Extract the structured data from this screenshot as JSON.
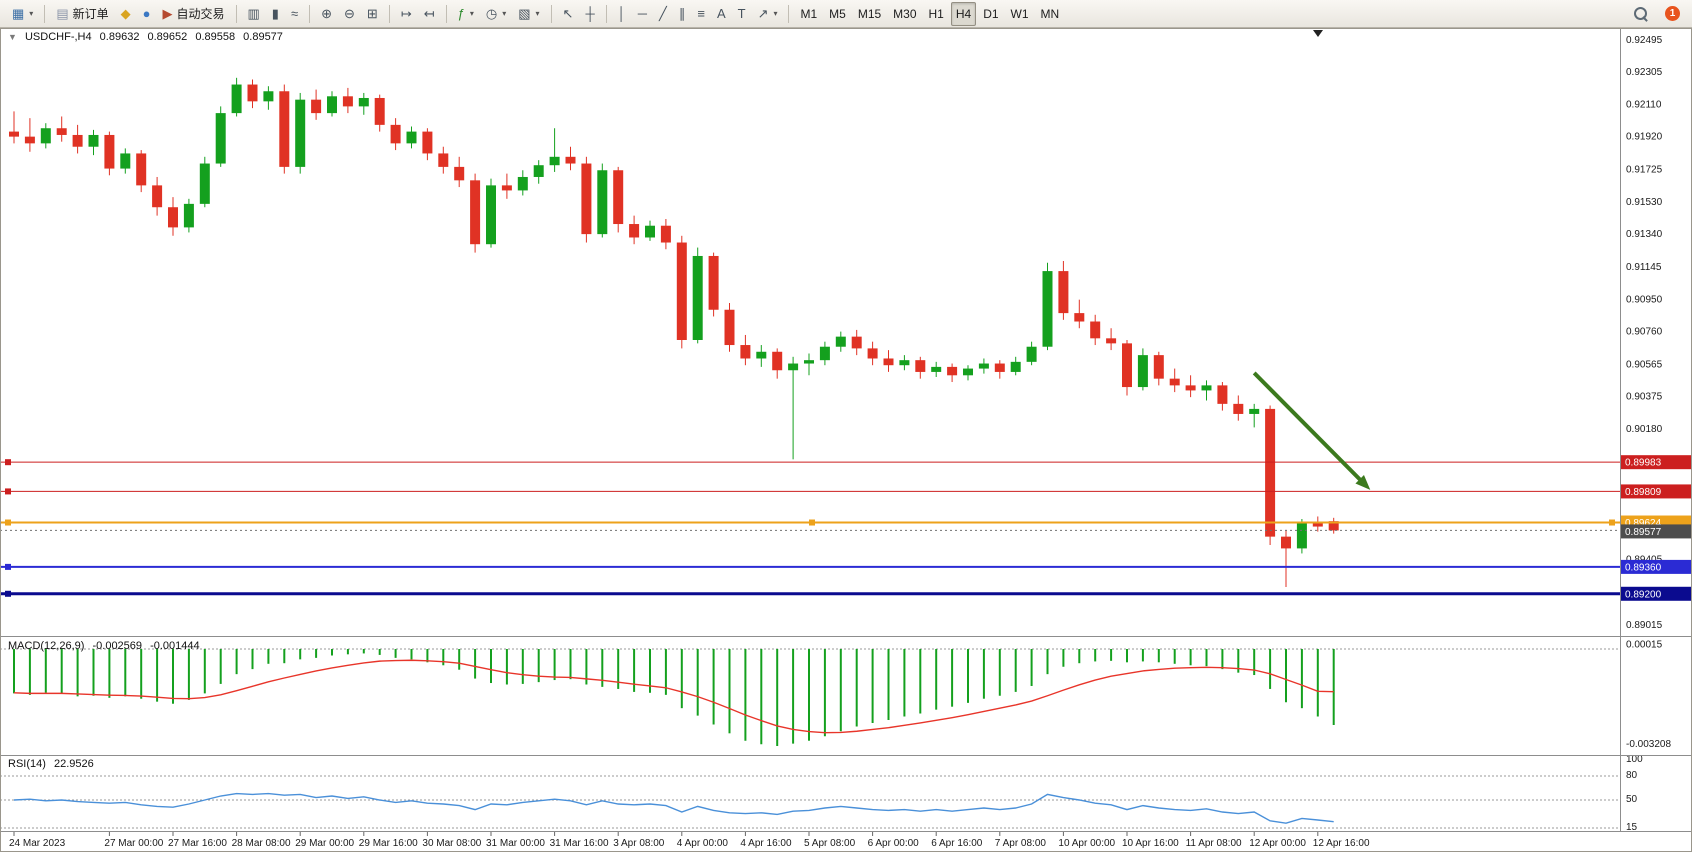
{
  "toolbar": {
    "dropdown_glyph": "▾",
    "groups": [
      {
        "items": [
          {
            "name": "new-chart",
            "icon": "▦",
            "icon_color": "#3a6ea5",
            "dropdown": true
          }
        ]
      },
      {
        "items": [
          {
            "name": "new-order",
            "icon": "▤",
            "icon_color": "#8a94a8",
            "label": "新订单"
          },
          {
            "name": "metaeditor",
            "icon": "◆",
            "icon_color": "#d9a420"
          },
          {
            "name": "community",
            "icon": "●",
            "icon_color": "#3b78c3"
          },
          {
            "name": "autotrading",
            "icon": "▶",
            "icon_color": "#b5492f",
            "label": "自动交易"
          }
        ]
      },
      {
        "items": [
          {
            "name": "chart-bars-mode",
            "icon": "▥"
          },
          {
            "name": "chart-candles-mode",
            "icon": "▮"
          },
          {
            "name": "chart-line-mode",
            "icon": "≈"
          }
        ]
      },
      {
        "items": [
          {
            "name": "zoom-in",
            "icon": "⊕"
          },
          {
            "name": "zoom-out",
            "icon": "⊖"
          },
          {
            "name": "tile-windows",
            "icon": "⊞"
          }
        ]
      },
      {
        "items": [
          {
            "name": "auto-scroll",
            "icon": "↦"
          },
          {
            "name": "chart-shift",
            "icon": "↤"
          }
        ]
      },
      {
        "items": [
          {
            "name": "indicators",
            "icon": "ƒ",
            "icon_color": "#2e8b2e",
            "dropdown": true
          },
          {
            "name": "periods",
            "icon": "◷",
            "dropdown": true
          },
          {
            "name": "templates",
            "icon": "▧",
            "dropdown": true
          }
        ]
      },
      {
        "items": [
          {
            "name": "cursor",
            "icon": "↖"
          },
          {
            "name": "crosshair",
            "icon": "┼"
          }
        ]
      },
      {
        "items": [
          {
            "name": "vertical-line-tool",
            "icon": "│"
          },
          {
            "name": "horizontal-line-tool",
            "icon": "─"
          },
          {
            "name": "trendline-tool",
            "icon": "╱"
          },
          {
            "name": "channel-tool",
            "icon": "∥"
          },
          {
            "name": "fibonacci-tool",
            "icon": "≡"
          },
          {
            "name": "text-tool",
            "icon": "A"
          },
          {
            "name": "label-tool",
            "icon": "T"
          },
          {
            "name": "arrows-tool",
            "icon": "↗",
            "dropdown": true
          }
        ]
      },
      {
        "items": [
          {
            "name": "tf-m1",
            "label": "M1"
          },
          {
            "name": "tf-m5",
            "label": "M5"
          },
          {
            "name": "tf-m15",
            "label": "M15"
          },
          {
            "name": "tf-m30",
            "label": "M30"
          },
          {
            "name": "tf-h1",
            "label": "H1"
          },
          {
            "name": "tf-h4",
            "label": "H4",
            "active": true
          },
          {
            "name": "tf-d1",
            "label": "D1"
          },
          {
            "name": "tf-w1",
            "label": "W1"
          },
          {
            "name": "tf-mn",
            "label": "MN"
          }
        ]
      }
    ],
    "right_items": [
      {
        "name": "search",
        "icon": "search"
      },
      {
        "name": "notifications",
        "badge": "1"
      }
    ]
  },
  "chart": {
    "header": {
      "one_click_icon": "▼",
      "symbol": "USDCHF-,H4",
      "open": "0.89632",
      "high": "0.89652",
      "low": "0.89558",
      "close": "0.89577"
    },
    "macd_label": {
      "title": "MACD(12,26,9)",
      "main": "-0.002569",
      "signal": "-0.001444"
    },
    "rsi_label": {
      "title": "RSI(14)",
      "value": "22.9526"
    }
  },
  "colors": {
    "bull": "#14a01e",
    "bear": "#e03224",
    "macd_histogram": "#14a01e",
    "macd_signal": "#e8352a",
    "rsi_line": "#4a90d9",
    "bid_line": "#707070",
    "bid_tag": "#4d4d4d",
    "arrow": "#3c7a1e",
    "axis_text": "#1a1a1a"
  },
  "chart_data": {
    "type": "candlestick",
    "symbol": "USDCHF",
    "timeframe": "H4",
    "candles": [
      [
        0.9195,
        0.9207,
        0.9188,
        0.9192
      ],
      [
        0.9192,
        0.9203,
        0.9183,
        0.9188
      ],
      [
        0.9188,
        0.92,
        0.9185,
        0.9197
      ],
      [
        0.9197,
        0.9204,
        0.9189,
        0.9193
      ],
      [
        0.9193,
        0.9199,
        0.9182,
        0.9186
      ],
      [
        0.9186,
        0.9196,
        0.9181,
        0.9193
      ],
      [
        0.9193,
        0.9195,
        0.9169,
        0.9173
      ],
      [
        0.9173,
        0.9185,
        0.917,
        0.9182
      ],
      [
        0.9182,
        0.9184,
        0.9159,
        0.9163
      ],
      [
        0.9163,
        0.9168,
        0.9145,
        0.915
      ],
      [
        0.915,
        0.9156,
        0.9133,
        0.9138
      ],
      [
        0.9138,
        0.9155,
        0.9135,
        0.9152
      ],
      [
        0.9152,
        0.918,
        0.915,
        0.9176
      ],
      [
        0.9176,
        0.921,
        0.9174,
        0.9206
      ],
      [
        0.9206,
        0.9227,
        0.9204,
        0.9223
      ],
      [
        0.9223,
        0.9226,
        0.9209,
        0.9213
      ],
      [
        0.9213,
        0.9222,
        0.9208,
        0.9219
      ],
      [
        0.9219,
        0.9223,
        0.917,
        0.9174
      ],
      [
        0.9174,
        0.9218,
        0.917,
        0.9214
      ],
      [
        0.9214,
        0.922,
        0.9202,
        0.9206
      ],
      [
        0.9206,
        0.9219,
        0.9204,
        0.9216
      ],
      [
        0.9216,
        0.9221,
        0.9206,
        0.921
      ],
      [
        0.921,
        0.9218,
        0.9205,
        0.9215
      ],
      [
        0.9215,
        0.9217,
        0.9195,
        0.9199
      ],
      [
        0.9199,
        0.9203,
        0.9184,
        0.9188
      ],
      [
        0.9188,
        0.9198,
        0.9185,
        0.9195
      ],
      [
        0.9195,
        0.9197,
        0.9178,
        0.9182
      ],
      [
        0.9182,
        0.9186,
        0.917,
        0.9174
      ],
      [
        0.9174,
        0.918,
        0.9162,
        0.9166
      ],
      [
        0.9166,
        0.917,
        0.9123,
        0.9128
      ],
      [
        0.9128,
        0.9167,
        0.9126,
        0.9163
      ],
      [
        0.9163,
        0.917,
        0.9155,
        0.916
      ],
      [
        0.916,
        0.9172,
        0.9157,
        0.9168
      ],
      [
        0.9168,
        0.9178,
        0.9164,
        0.9175
      ],
      [
        0.9175,
        0.9197,
        0.9171,
        0.918
      ],
      [
        0.918,
        0.9186,
        0.9172,
        0.9176
      ],
      [
        0.9176,
        0.918,
        0.9129,
        0.9134
      ],
      [
        0.9134,
        0.9176,
        0.9132,
        0.9172
      ],
      [
        0.9172,
        0.9174,
        0.9135,
        0.914
      ],
      [
        0.914,
        0.9145,
        0.9128,
        0.9132
      ],
      [
        0.9132,
        0.9142,
        0.913,
        0.9139
      ],
      [
        0.9139,
        0.9143,
        0.9125,
        0.9129
      ],
      [
        0.9129,
        0.9133,
        0.9066,
        0.9071
      ],
      [
        0.9071,
        0.9126,
        0.9069,
        0.9121
      ],
      [
        0.9121,
        0.9123,
        0.9085,
        0.9089
      ],
      [
        0.9089,
        0.9093,
        0.9064,
        0.9068
      ],
      [
        0.9068,
        0.9074,
        0.9056,
        0.906
      ],
      [
        0.906,
        0.9068,
        0.9055,
        0.9064
      ],
      [
        0.9064,
        0.9066,
        0.9048,
        0.9053
      ],
      [
        0.9053,
        0.9061,
        0.9,
        0.9057
      ],
      [
        0.9057,
        0.9063,
        0.905,
        0.9059
      ],
      [
        0.9059,
        0.907,
        0.9056,
        0.9067
      ],
      [
        0.9067,
        0.9076,
        0.9064,
        0.9073
      ],
      [
        0.9073,
        0.9077,
        0.9062,
        0.9066
      ],
      [
        0.9066,
        0.907,
        0.9056,
        0.906
      ],
      [
        0.906,
        0.9065,
        0.9052,
        0.9056
      ],
      [
        0.9056,
        0.9062,
        0.9053,
        0.9059
      ],
      [
        0.9059,
        0.9061,
        0.9048,
        0.9052
      ],
      [
        0.9052,
        0.9058,
        0.9049,
        0.9055
      ],
      [
        0.9055,
        0.9057,
        0.9046,
        0.905
      ],
      [
        0.905,
        0.9056,
        0.9047,
        0.9054
      ],
      [
        0.9054,
        0.906,
        0.9051,
        0.9057
      ],
      [
        0.9057,
        0.9059,
        0.9048,
        0.9052
      ],
      [
        0.9052,
        0.9061,
        0.905,
        0.9058
      ],
      [
        0.9058,
        0.907,
        0.9056,
        0.9067
      ],
      [
        0.9067,
        0.9117,
        0.9065,
        0.9112
      ],
      [
        0.9112,
        0.9118,
        0.9083,
        0.9087
      ],
      [
        0.9087,
        0.9095,
        0.9078,
        0.9082
      ],
      [
        0.9082,
        0.9086,
        0.9068,
        0.9072
      ],
      [
        0.9072,
        0.9078,
        0.9065,
        0.9069
      ],
      [
        0.9069,
        0.9071,
        0.9038,
        0.9043
      ],
      [
        0.9043,
        0.9066,
        0.9041,
        0.9062
      ],
      [
        0.9062,
        0.9064,
        0.9044,
        0.9048
      ],
      [
        0.9048,
        0.9054,
        0.904,
        0.9044
      ],
      [
        0.9044,
        0.905,
        0.9037,
        0.9041
      ],
      [
        0.9041,
        0.9047,
        0.9035,
        0.9044
      ],
      [
        0.9044,
        0.9046,
        0.9029,
        0.9033
      ],
      [
        0.9033,
        0.9038,
        0.9023,
        0.9027
      ],
      [
        0.9027,
        0.9033,
        0.9019,
        0.903
      ],
      [
        0.903,
        0.9032,
        0.8949,
        0.8954
      ],
      [
        0.8954,
        0.8958,
        0.8924,
        0.8947
      ],
      [
        0.8947,
        0.89645,
        0.8944,
        0.8962
      ],
      [
        0.8962,
        0.8966,
        0.8957,
        0.896
      ],
      [
        0.89632,
        0.89652,
        0.89558,
        0.89577
      ]
    ],
    "macd": [
      -0.0015,
      -0.00155,
      -0.00148,
      -0.00152,
      -0.0016,
      -0.00158,
      -0.00165,
      -0.0016,
      -0.00168,
      -0.00178,
      -0.00185,
      -0.00172,
      -0.0015,
      -0.00118,
      -0.00085,
      -0.00068,
      -0.0005,
      -0.00048,
      -0.00035,
      -0.0003,
      -0.00022,
      -0.00018,
      -0.00015,
      -0.0002,
      -0.0003,
      -0.00035,
      -0.00045,
      -0.00055,
      -0.0007,
      -0.001,
      -0.00115,
      -0.0012,
      -0.00118,
      -0.00112,
      -0.00105,
      -0.00102,
      -0.0012,
      -0.00128,
      -0.00135,
      -0.00145,
      -0.00148,
      -0.00155,
      -0.002,
      -0.00225,
      -0.00255,
      -0.00285,
      -0.0031,
      -0.00322,
      -0.00328,
      -0.0032,
      -0.0031,
      -0.00295,
      -0.00278,
      -0.00262,
      -0.0025,
      -0.0024,
      -0.00228,
      -0.00218,
      -0.00205,
      -0.00195,
      -0.00182,
      -0.00168,
      -0.00158,
      -0.00145,
      -0.00125,
      -0.00085,
      -0.0006,
      -0.00048,
      -0.00042,
      -0.0004,
      -0.00045,
      -0.00042,
      -0.00045,
      -0.0005,
      -0.00055,
      -0.00058,
      -0.00068,
      -0.0008,
      -0.00088,
      -0.00135,
      -0.0018,
      -0.002,
      -0.00228,
      -0.002569
    ],
    "macd_signal": [
      -0.00148,
      -0.0015,
      -0.0015,
      -0.0015,
      -0.00152,
      -0.00154,
      -0.00156,
      -0.00157,
      -0.00159,
      -0.00163,
      -0.00167,
      -0.00168,
      -0.00164,
      -0.00155,
      -0.00141,
      -0.00126,
      -0.00111,
      -0.00098,
      -0.00086,
      -0.00074,
      -0.00064,
      -0.00055,
      -0.00047,
      -0.00041,
      -0.00039,
      -0.00038,
      -0.0004,
      -0.00043,
      -0.00048,
      -0.00059,
      -0.0007,
      -0.0008,
      -0.00087,
      -0.00092,
      -0.00095,
      -0.00096,
      -0.00101,
      -0.00106,
      -0.00112,
      -0.00119,
      -0.00125,
      -0.00131,
      -0.00145,
      -0.00161,
      -0.0018,
      -0.00201,
      -0.00223,
      -0.00242,
      -0.0026,
      -0.00272,
      -0.00279,
      -0.00283,
      -0.00282,
      -0.00278,
      -0.00272,
      -0.00266,
      -0.00258,
      -0.0025,
      -0.00241,
      -0.00232,
      -0.00222,
      -0.00211,
      -0.002,
      -0.00189,
      -0.00176,
      -0.00158,
      -0.00139,
      -0.00121,
      -0.00105,
      -0.00092,
      -0.00083,
      -0.00074,
      -0.00069,
      -0.00065,
      -0.00063,
      -0.00062,
      -0.00063,
      -0.00066,
      -0.00071,
      -0.00084,
      -0.00103,
      -0.00122,
      -0.00143,
      -0.001444
    ],
    "rsi": [
      50,
      51,
      49,
      50,
      48,
      47,
      46,
      47,
      44,
      42,
      41,
      45,
      50,
      55,
      58,
      57,
      58,
      56,
      57,
      53,
      55,
      52,
      54,
      50,
      47,
      49,
      46,
      45,
      43,
      38,
      45,
      44,
      47,
      49,
      51,
      49,
      44,
      49,
      45,
      44,
      45,
      43,
      35,
      42,
      37,
      34,
      33,
      34,
      32,
      36,
      37,
      40,
      42,
      40,
      38,
      37,
      38,
      36,
      38,
      36,
      38,
      40,
      38,
      40,
      45,
      57,
      53,
      50,
      46,
      44,
      38,
      43,
      40,
      38,
      37,
      39,
      35,
      33,
      35,
      24,
      21,
      27,
      25,
      22.95
    ],
    "price_axis_labels": [
      "0.92495",
      "0.92305",
      "0.92110",
      "0.91920",
      "0.91725",
      "0.91530",
      "0.91340",
      "0.91145",
      "0.90950",
      "0.90760",
      "0.90565",
      "0.90375",
      "0.90180",
      "0.89985",
      "0.89790",
      "0.89600",
      "0.89405",
      "0.89210",
      "0.89015"
    ],
    "hlines": [
      {
        "value": 0.89983,
        "label": "0.89983",
        "color": "#cc1f1f",
        "width": 1
      },
      {
        "value": 0.89809,
        "label": "0.89809",
        "color": "#cc1f1f",
        "width": 1
      },
      {
        "value": 0.89624,
        "label": "0.89624",
        "color": "#eda21b",
        "width": 2,
        "handles": [
          8,
          812,
          1612
        ]
      },
      {
        "value": 0.8936,
        "label": "0.89360",
        "color": "#2b2bd4",
        "width": 2
      },
      {
        "value": 0.892,
        "label": "0.89200",
        "color": "#0b0b8f",
        "width": 3
      }
    ],
    "current_price": 0.89577,
    "current_price_label": "0.89577",
    "macd_axis_labels": [
      {
        "value": 0.00015,
        "label": "0.00015"
      },
      {
        "value": -0.003208,
        "label": "-0.003208"
      }
    ],
    "rsi_axis_labels": [
      {
        "value": 100,
        "label": "100"
      },
      {
        "value": 80,
        "label": "80"
      },
      {
        "value": 50,
        "label": "50"
      },
      {
        "value": 15,
        "label": "15"
      }
    ],
    "rsi_levels": [
      80,
      50,
      15
    ],
    "time_labels": [
      {
        "index": 0,
        "label": "24 Mar 2023"
      },
      {
        "index": 6,
        "label": "27 Mar 00:00"
      },
      {
        "index": 10,
        "label": "27 Mar 16:00"
      },
      {
        "index": 14,
        "label": "28 Mar 08:00"
      },
      {
        "index": 18,
        "label": "29 Mar 00:00"
      },
      {
        "index": 22,
        "label": "29 Mar 16:00"
      },
      {
        "index": 26,
        "label": "30 Mar 08:00"
      },
      {
        "index": 30,
        "label": "31 Mar 00:00"
      },
      {
        "index": 34,
        "label": "31 Mar 16:00"
      },
      {
        "index": 38,
        "label": "3 Apr 08:00"
      },
      {
        "index": 42,
        "label": "4 Apr 00:00"
      },
      {
        "index": 46,
        "label": "4 Apr 16:00"
      },
      {
        "index": 50,
        "label": "5 Apr 08:00"
      },
      {
        "index": 54,
        "label": "6 Apr 00:00"
      },
      {
        "index": 58,
        "label": "6 Apr 16:00"
      },
      {
        "index": 62,
        "label": "7 Apr 08:00"
      },
      {
        "index": 66,
        "label": "10 Apr 00:00"
      },
      {
        "index": 70,
        "label": "10 Apr 16:00"
      },
      {
        "index": 74,
        "label": "11 Apr 08:00"
      },
      {
        "index": 78,
        "label": "12 Apr 00:00"
      },
      {
        "index": 82,
        "label": "12 Apr 16:00"
      }
    ],
    "arrow": {
      "index_start": 78.0,
      "price_start": 0.90514,
      "index_end": 85.3,
      "price_end": 0.89818
    }
  }
}
